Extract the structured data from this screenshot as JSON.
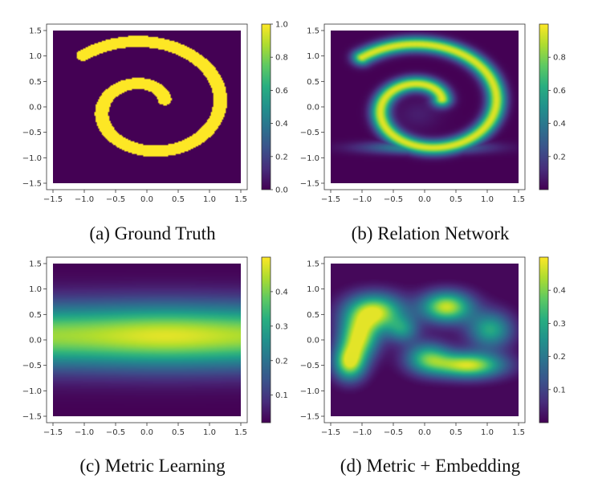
{
  "chart_data": [
    {
      "id": "a",
      "type": "heatmap",
      "title": "",
      "caption": "(a) Ground Truth",
      "xlim": [
        -1.5,
        1.5
      ],
      "ylim": [
        -1.5,
        1.5
      ],
      "xticks": [
        -1.5,
        -1.0,
        -0.5,
        0.0,
        0.5,
        1.0,
        1.5
      ],
      "xtick_labels": [
        "−1.5",
        "−1.0",
        "−0.5",
        "0.0",
        "0.5",
        "1.0",
        "1.5"
      ],
      "yticks": [
        1.5,
        1.0,
        0.5,
        0.0,
        -0.5,
        -1.0,
        -1.5
      ],
      "ytick_labels": [
        "1.5",
        "1.0",
        "0.5",
        "0.0",
        "−0.5",
        "−1.0",
        "−1.5"
      ],
      "colorbar": {
        "range": [
          0.0,
          1.0
        ],
        "ticks": [
          0.0,
          0.2,
          0.4,
          0.6,
          0.8,
          1.0
        ],
        "tick_labels": [
          "0.0",
          "0.2",
          "0.4",
          "0.6",
          "0.8",
          "1.0"
        ]
      },
      "colormap": "viridis",
      "pattern": "two-arm spiral, binary values (0 background, 1 on arms)"
    },
    {
      "id": "b",
      "type": "heatmap",
      "title": "",
      "caption": "(b) Relation Network",
      "xlim": [
        -1.5,
        1.5
      ],
      "ylim": [
        -1.5,
        1.5
      ],
      "xticks": [
        -1.5,
        -1.0,
        -0.5,
        0.0,
        0.5,
        1.0,
        1.5
      ],
      "xtick_labels": [
        "−1.5",
        "−1.0",
        "−0.5",
        "0.0",
        "0.5",
        "1.0",
        "1.5"
      ],
      "yticks": [
        1.5,
        1.0,
        0.5,
        0.0,
        -0.5,
        -1.0,
        -1.5
      ],
      "ytick_labels": [
        "1.5",
        "1.0",
        "0.5",
        "0.0",
        "−0.5",
        "−1.0",
        "−1.5"
      ],
      "colorbar": {
        "range": [
          0.0,
          1.0
        ],
        "ticks": [
          0.2,
          0.4,
          0.6,
          0.8
        ],
        "tick_labels": [
          "0.2",
          "0.4",
          "0.6",
          "0.8"
        ]
      },
      "colormap": "viridis",
      "pattern": "blurred two-arm spiral, max about 0.95"
    },
    {
      "id": "c",
      "type": "heatmap",
      "title": "",
      "caption": "(c) Metric Learning",
      "xlim": [
        -1.5,
        1.5
      ],
      "ylim": [
        -1.5,
        1.5
      ],
      "xticks": [
        -1.5,
        -1.0,
        -0.5,
        0.0,
        0.5,
        1.0,
        1.5
      ],
      "xtick_labels": [
        "−1.5",
        "−1.0",
        "−0.5",
        "0.0",
        "0.5",
        "1.0",
        "1.5"
      ],
      "yticks": [
        1.5,
        1.0,
        0.5,
        0.0,
        -0.5,
        -1.0,
        -1.5
      ],
      "ytick_labels": [
        "1.5",
        "1.0",
        "0.5",
        "0.0",
        "−0.5",
        "−1.0",
        "−1.5"
      ],
      "colorbar": {
        "range": [
          0.02,
          0.5
        ],
        "ticks": [
          0.1,
          0.2,
          0.3,
          0.4
        ],
        "tick_labels": [
          "0.1",
          "0.2",
          "0.3",
          "0.4"
        ]
      },
      "colormap": "viridis",
      "pattern": "horizontal band centered near y = 0.1, max about 0.48"
    },
    {
      "id": "d",
      "type": "heatmap",
      "title": "",
      "caption": "(d) Metric + Embedding",
      "xlim": [
        -1.5,
        1.5
      ],
      "ylim": [
        -1.5,
        1.5
      ],
      "xticks": [
        -1.5,
        -1.0,
        -0.5,
        0.0,
        0.5,
        1.0,
        1.5
      ],
      "xtick_labels": [
        "−1.5",
        "−1.0",
        "−0.5",
        "0.0",
        "0.5",
        "1.0",
        "1.5"
      ],
      "yticks": [
        1.5,
        1.0,
        0.5,
        0.0,
        -0.5,
        -1.0,
        -1.5
      ],
      "ytick_labels": [
        "1.5",
        "1.0",
        "0.5",
        "0.0",
        "−0.5",
        "−1.0",
        "−1.5"
      ],
      "colorbar": {
        "range": [
          0.0,
          0.5
        ],
        "ticks": [
          0.1,
          0.2,
          0.3,
          0.4
        ],
        "tick_labels": [
          "0.1",
          "0.2",
          "0.3",
          "0.4"
        ]
      },
      "colormap": "viridis",
      "pattern": "lumpy arch with lobes, max about 0.48"
    }
  ]
}
